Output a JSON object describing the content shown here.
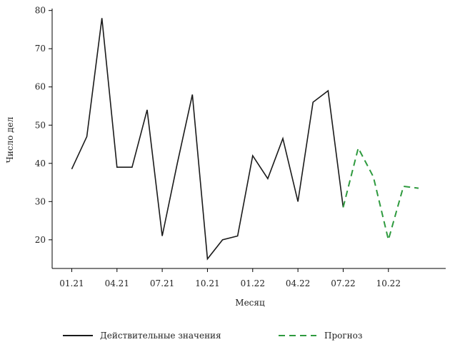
{
  "chart_data": {
    "type": "line",
    "title": "",
    "xlabel": "Месяц",
    "ylabel": "Число дел",
    "x_tick_labels": [
      "01.21",
      "04.21",
      "07.21",
      "10.21",
      "01.22",
      "04.22",
      "07.22",
      "10.22"
    ],
    "x_tick_month_index": [
      0,
      3,
      6,
      9,
      12,
      15,
      18,
      21
    ],
    "y_ticks": [
      20,
      30,
      40,
      50,
      60,
      70,
      80
    ],
    "xlim": [
      -1.3,
      24.8
    ],
    "ylim": [
      12.5,
      80.5
    ],
    "grid": false,
    "legend_position": "bottom",
    "series": [
      {
        "name": "Действительные значения",
        "style": "solid",
        "color": "#1a1a1a",
        "x_month_index": [
          0,
          1,
          2,
          3,
          4,
          5,
          6,
          7,
          8,
          9,
          10,
          11,
          12,
          13,
          14,
          15,
          16,
          17,
          18
        ],
        "values": [
          38.5,
          47,
          78,
          39,
          39,
          54,
          21,
          40,
          58,
          15,
          20,
          21,
          42,
          36,
          46.5,
          30,
          56,
          59,
          28.5
        ]
      },
      {
        "name": "Прогноз",
        "style": "dashed",
        "color": "#2e9a3e",
        "x_month_index": [
          18,
          19,
          20,
          21,
          22,
          23
        ],
        "values": [
          28.5,
          44,
          36.5,
          20,
          34,
          33.5
        ]
      }
    ]
  }
}
